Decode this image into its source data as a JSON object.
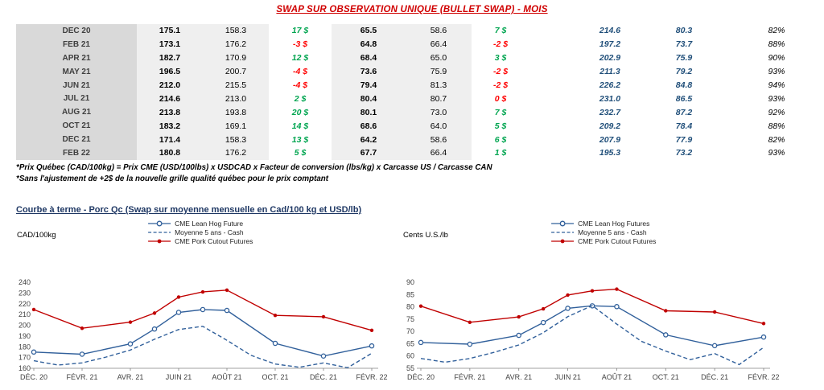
{
  "colors": {
    "title_red": "#D00000",
    "positive_green": "#00A550",
    "negative_red": "#FF0000",
    "navy": "#1F4E79",
    "section_title": "#1F3864"
  },
  "title": "SWAP SUR OBSERVATION UNIQUE (BULLET SWAP) - MOIS",
  "table": {
    "rows": [
      {
        "month": "DEC 20",
        "price_cad": "175.1",
        "cash_cad": "158.3",
        "diff_cad": "17 $",
        "diff_cad_sign": "pos",
        "price_us": "65.5",
        "cash_us": "58.6",
        "diff_us": "7 $",
        "diff_us_sign": "pos",
        "cutout_cad": "214.6",
        "cutout_us": "80.3",
        "pct": "82%"
      },
      {
        "month": "FEB 21",
        "price_cad": "173.1",
        "cash_cad": "176.2",
        "diff_cad": "-3 $",
        "diff_cad_sign": "neg",
        "price_us": "64.8",
        "cash_us": "66.4",
        "diff_us": "-2 $",
        "diff_us_sign": "neg",
        "cutout_cad": "197.2",
        "cutout_us": "73.7",
        "pct": "88%"
      },
      {
        "month": "APR 21",
        "price_cad": "182.7",
        "cash_cad": "170.9",
        "diff_cad": "12 $",
        "diff_cad_sign": "pos",
        "price_us": "68.4",
        "cash_us": "65.0",
        "diff_us": "3 $",
        "diff_us_sign": "pos",
        "cutout_cad": "202.9",
        "cutout_us": "75.9",
        "pct": "90%"
      },
      {
        "month": "MAY 21",
        "price_cad": "196.5",
        "cash_cad": "200.7",
        "diff_cad": "-4 $",
        "diff_cad_sign": "neg",
        "price_us": "73.6",
        "cash_us": "75.9",
        "diff_us": "-2 $",
        "diff_us_sign": "neg",
        "cutout_cad": "211.3",
        "cutout_us": "79.2",
        "pct": "93%"
      },
      {
        "month": "JUN 21",
        "price_cad": "212.0",
        "cash_cad": "215.5",
        "diff_cad": "-4 $",
        "diff_cad_sign": "neg",
        "price_us": "79.4",
        "cash_us": "81.3",
        "diff_us": "-2 $",
        "diff_us_sign": "neg",
        "cutout_cad": "226.2",
        "cutout_us": "84.8",
        "pct": "94%"
      },
      {
        "month": "JUL 21",
        "price_cad": "214.6",
        "cash_cad": "213.0",
        "diff_cad": "2 $",
        "diff_cad_sign": "pos",
        "price_us": "80.4",
        "cash_us": "80.7",
        "diff_us": "0 $",
        "diff_us_sign": "neg",
        "cutout_cad": "231.0",
        "cutout_us": "86.5",
        "pct": "93%"
      },
      {
        "month": "AUG 21",
        "price_cad": "213.8",
        "cash_cad": "193.8",
        "diff_cad": "20 $",
        "diff_cad_sign": "pos",
        "price_us": "80.1",
        "cash_us": "73.0",
        "diff_us": "7 $",
        "diff_us_sign": "pos",
        "cutout_cad": "232.7",
        "cutout_us": "87.2",
        "pct": "92%"
      },
      {
        "month": "OCT 21",
        "price_cad": "183.2",
        "cash_cad": "169.1",
        "diff_cad": "14 $",
        "diff_cad_sign": "pos",
        "price_us": "68.6",
        "cash_us": "64.0",
        "diff_us": "5 $",
        "diff_us_sign": "pos",
        "cutout_cad": "209.2",
        "cutout_us": "78.4",
        "pct": "88%"
      },
      {
        "month": "DEC 21",
        "price_cad": "171.4",
        "cash_cad": "158.3",
        "diff_cad": "13 $",
        "diff_cad_sign": "pos",
        "price_us": "64.2",
        "cash_us": "58.6",
        "diff_us": "6 $",
        "diff_us_sign": "pos",
        "cutout_cad": "207.9",
        "cutout_us": "77.9",
        "pct": "82%"
      },
      {
        "month": "FEB 22",
        "price_cad": "180.8",
        "cash_cad": "176.2",
        "diff_cad": "5 $",
        "diff_cad_sign": "pos",
        "price_us": "67.7",
        "cash_us": "66.4",
        "diff_us": "1 $",
        "diff_us_sign": "pos",
        "cutout_cad": "195.3",
        "cutout_us": "73.2",
        "pct": "93%"
      }
    ]
  },
  "footnotes": [
    "*Prix Québec (CAD/100kg) = Prix CME (USD/100lbs) x USDCAD x Facteur de conversion (lbs/kg) x Carcasse US / Carcasse CAN",
    "*Sans l'ajustement de +2$ de la nouvelle grille qualité québec pour le prix comptant"
  ],
  "section_title": "Courbe à terme - Porc Qc (Swap sur moyenne mensuelle en Cad/100 kg et USD/lb)",
  "chart_data": [
    {
      "type": "line",
      "y_axis_label": "CAD/100kg",
      "ylim": [
        160,
        240
      ],
      "ytick_step": 10,
      "xlim": [
        0,
        14
      ],
      "grid": false,
      "legend_position": "top",
      "x_ticks": [
        {
          "pos": 0,
          "label": "DÉC. 20"
        },
        {
          "pos": 2,
          "label": "FÉVR. 21"
        },
        {
          "pos": 4,
          "label": "AVR. 21"
        },
        {
          "pos": 6,
          "label": "JUIN 21"
        },
        {
          "pos": 8,
          "label": "AOÛT 21"
        },
        {
          "pos": 10,
          "label": "OCT. 21"
        },
        {
          "pos": 12,
          "label": "DÉC. 21"
        },
        {
          "pos": 14,
          "label": "FÉVR. 22"
        }
      ],
      "series": [
        {
          "name": "CME Lean Hog Future",
          "color": "#31609B",
          "dash": "solid",
          "marker": "open-circle",
          "x": [
            0,
            2,
            4,
            5,
            6,
            7,
            8,
            10,
            12,
            14
          ],
          "y": [
            175.1,
            173.1,
            182.7,
            196.5,
            212.0,
            214.6,
            213.8,
            183.2,
            171.4,
            180.8
          ]
        },
        {
          "name": "Moyenne 5 ans - Cash",
          "color": "#31609B",
          "dash": "dashed",
          "marker": "none",
          "x": [
            0,
            1,
            2,
            3,
            4,
            5,
            6,
            7,
            8,
            9,
            10,
            11,
            12,
            13,
            14
          ],
          "y": [
            167,
            163,
            165,
            170.5,
            177,
            187,
            196,
            199,
            186,
            172,
            164,
            161,
            165,
            160.5,
            174
          ]
        },
        {
          "name": "CME Pork Cutout Futures",
          "color": "#C00000",
          "dash": "solid",
          "marker": "dot",
          "x": [
            0,
            2,
            4,
            5,
            6,
            7,
            8,
            10,
            12,
            14
          ],
          "y": [
            214.6,
            197.2,
            202.9,
            211.3,
            226.2,
            231.0,
            232.7,
            209.2,
            207.9,
            195.3
          ]
        }
      ]
    },
    {
      "type": "line",
      "y_axis_label": "Cents U.S./lb",
      "ylim": [
        55,
        90
      ],
      "ytick_step": 5,
      "xlim": [
        0,
        14
      ],
      "grid": false,
      "legend_position": "top",
      "x_ticks": [
        {
          "pos": 0,
          "label": "DÉC. 20"
        },
        {
          "pos": 2,
          "label": "FÉVR. 21"
        },
        {
          "pos": 4,
          "label": "AVR. 21"
        },
        {
          "pos": 6,
          "label": "JUIN 21"
        },
        {
          "pos": 8,
          "label": "AOÛT 21"
        },
        {
          "pos": 10,
          "label": "OCT. 21"
        },
        {
          "pos": 12,
          "label": "DÉC. 21"
        },
        {
          "pos": 14,
          "label": "FÉVR. 22"
        }
      ],
      "series": [
        {
          "name": "CME Lean Hog Futures",
          "color": "#31609B",
          "dash": "solid",
          "marker": "open-circle",
          "x": [
            0,
            2,
            4,
            5,
            6,
            7,
            8,
            10,
            12,
            14
          ],
          "y": [
            65.5,
            64.8,
            68.4,
            73.6,
            79.4,
            80.4,
            80.1,
            68.6,
            64.2,
            67.7
          ]
        },
        {
          "name": "Moyenne 5 ans - Cash",
          "color": "#31609B",
          "dash": "dashed",
          "marker": "none",
          "x": [
            0,
            1,
            2,
            3,
            4,
            5,
            6,
            7,
            8,
            9,
            10,
            11,
            12,
            13,
            14
          ],
          "y": [
            59,
            57.5,
            59,
            61.5,
            64.5,
            69.5,
            76,
            80.5,
            73,
            66,
            62,
            58.5,
            61,
            56.5,
            63.5
          ]
        },
        {
          "name": "CME Pork Cutout Futures",
          "color": "#C00000",
          "dash": "solid",
          "marker": "dot",
          "x": [
            0,
            2,
            4,
            5,
            6,
            7,
            8,
            10,
            12,
            14
          ],
          "y": [
            80.3,
            73.7,
            75.9,
            79.2,
            84.8,
            86.5,
            87.2,
            78.4,
            77.9,
            73.2
          ]
        }
      ]
    }
  ]
}
